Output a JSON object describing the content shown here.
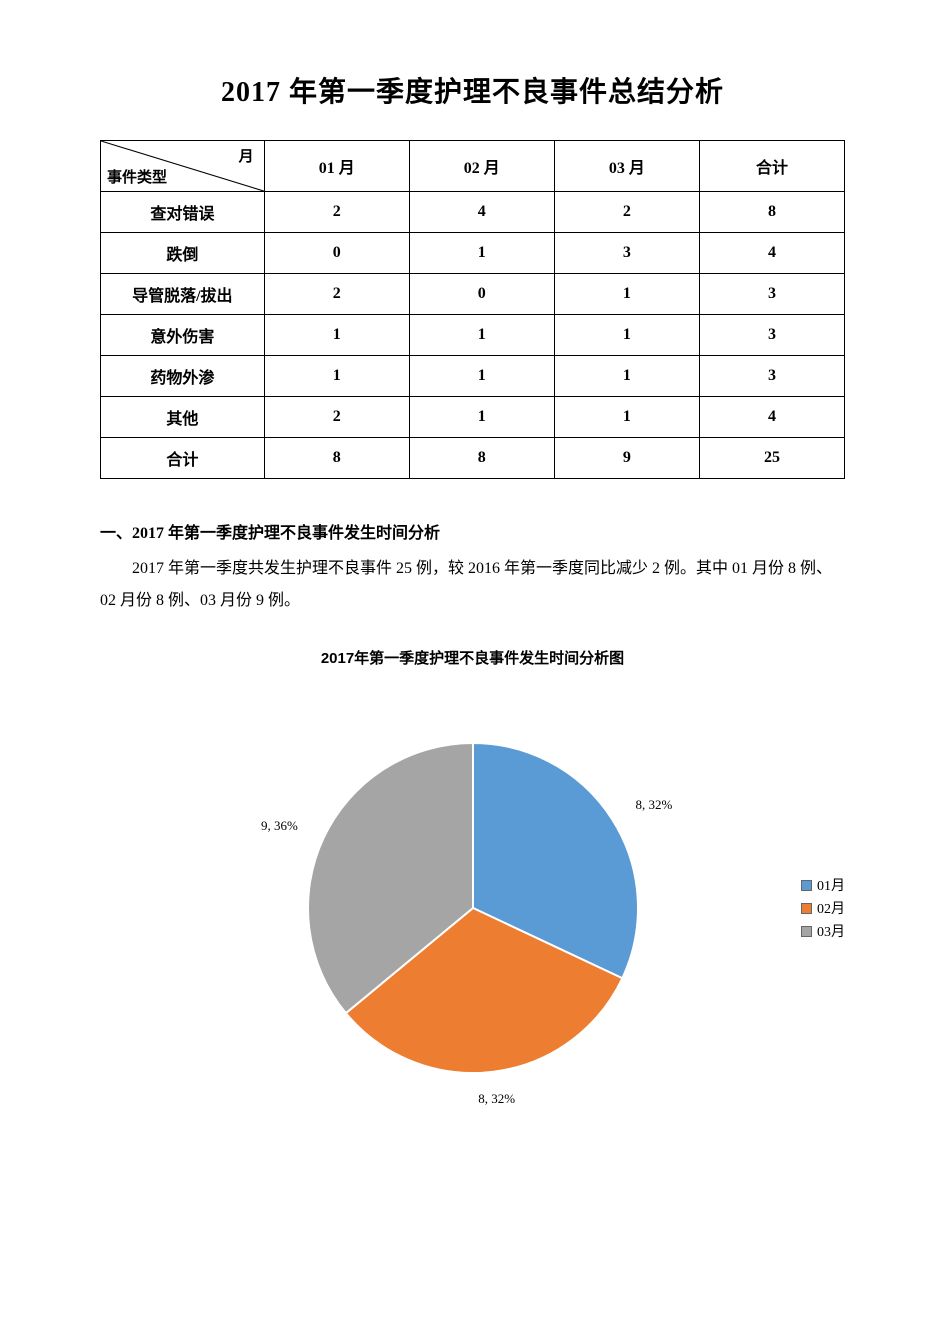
{
  "title": "2017 年第一季度护理不良事件总结分析",
  "table": {
    "diag_top": "月",
    "diag_bottom": "事件类型",
    "columns": [
      "01 月",
      "02 月",
      "03 月",
      "合计"
    ],
    "col_widths_pct": [
      22,
      19.5,
      19.5,
      19.5,
      19.5
    ],
    "rows": [
      {
        "label": "查对错误",
        "values": [
          "2",
          "4",
          "2",
          "8"
        ]
      },
      {
        "label": "跌倒",
        "values": [
          "0",
          "1",
          "3",
          "4"
        ]
      },
      {
        "label": "导管脱落/拔出",
        "values": [
          "2",
          "0",
          "1",
          "3"
        ]
      },
      {
        "label": "意外伤害",
        "values": [
          "1",
          "1",
          "1",
          "3"
        ]
      },
      {
        "label": "药物外渗",
        "values": [
          "1",
          "1",
          "1",
          "3"
        ]
      },
      {
        "label": "其他",
        "values": [
          "2",
          "1",
          "1",
          "4"
        ]
      },
      {
        "label": "合计",
        "values": [
          "8",
          "8",
          "9",
          "25"
        ]
      }
    ],
    "border_color": "#000000",
    "font_size": 16
  },
  "section1": {
    "heading": "一、2017 年第一季度护理不良事件发生时间分析",
    "body": "2017 年第一季度共发生护理不良事件 25 例，较 2016 年第一季度同比减少 2 例。其中 01 月份 8 例、02 月份 8 例、03 月份 9 例。"
  },
  "chart": {
    "type": "pie",
    "title": "2017年第一季度护理不良事件发生时间分析图",
    "radius": 165,
    "center_offset_x": 0,
    "background_color": "#ffffff",
    "stroke_color": "#ffffff",
    "stroke_width": 2,
    "start_angle_deg": -90,
    "slices": [
      {
        "name": "01月",
        "value": 8,
        "percent": 32,
        "color": "#5b9bd5",
        "label": "8, 32%",
        "label_pos": "right"
      },
      {
        "name": "02月",
        "value": 8,
        "percent": 32,
        "color": "#ed7d31",
        "label": "8, 32%",
        "label_pos": "bottom"
      },
      {
        "name": "03月",
        "value": 9,
        "percent": 36,
        "color": "#a5a5a5",
        "label": "9, 36%",
        "label_pos": "left"
      }
    ],
    "legend_items": [
      {
        "swatch": "#5b9bd5",
        "text": "01月"
      },
      {
        "swatch": "#ed7d31",
        "text": "02月"
      },
      {
        "swatch": "#a5a5a5",
        "text": "03月"
      }
    ],
    "legend_border": "#666666",
    "label_fontsize": 13,
    "title_fontsize": 15
  }
}
